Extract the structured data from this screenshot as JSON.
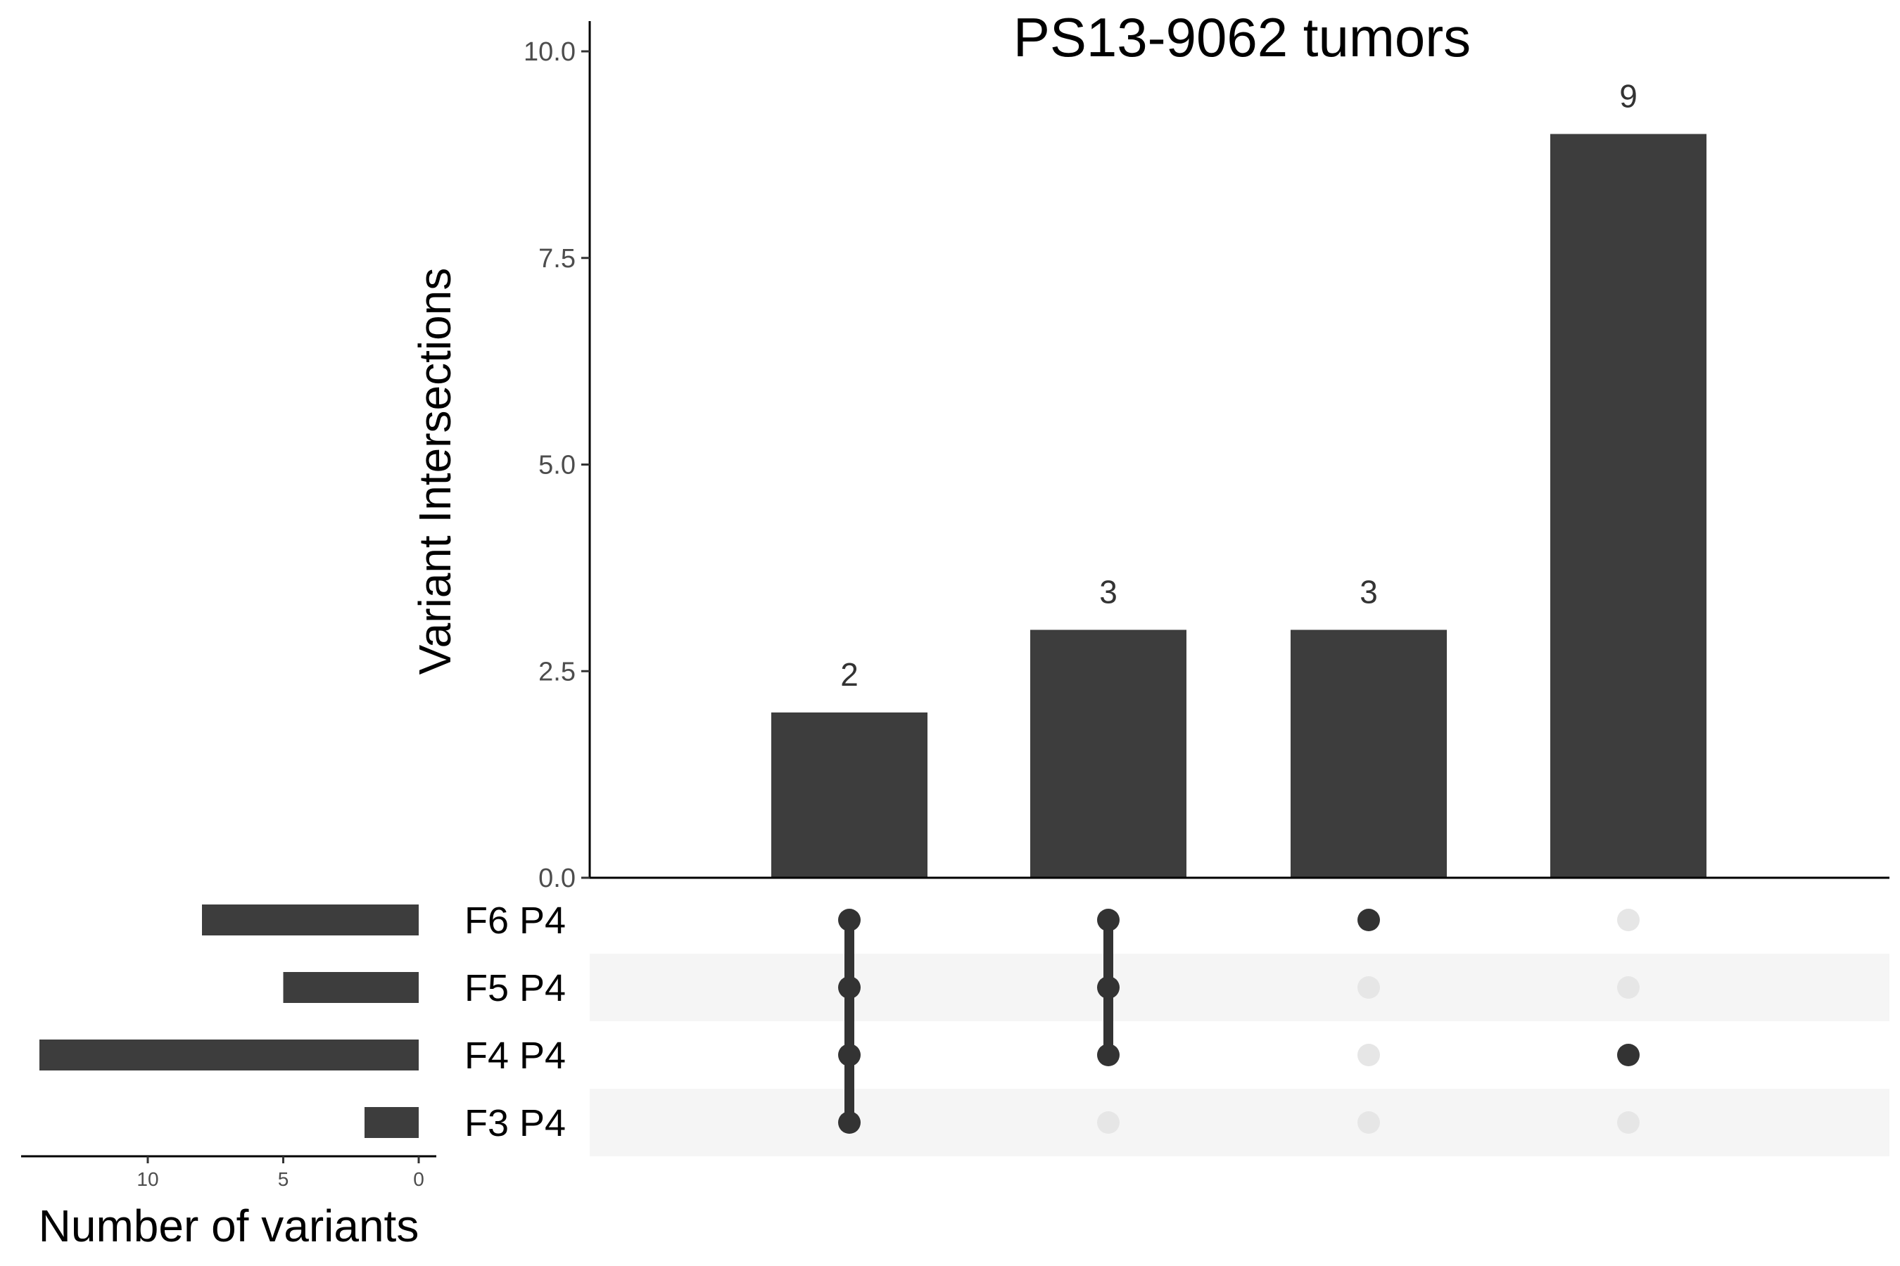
{
  "chart_data": {
    "type": "bar",
    "subtype": "upset",
    "title": "PS13-9062 tumors",
    "ylabel": "Variant Intersections",
    "ylim": [
      0,
      10
    ],
    "yticks": [
      "0.0",
      "2.5",
      "5.0",
      "7.5",
      "10.0"
    ],
    "ytick_values": [
      0,
      2.5,
      5.0,
      7.5,
      10.0
    ],
    "intersections": [
      {
        "value": 2,
        "label": "2",
        "sets": [
          "F6 P4",
          "F5 P4",
          "F4 P4",
          "F3 P4"
        ]
      },
      {
        "value": 3,
        "label": "3",
        "sets": [
          "F6 P4",
          "F5 P4",
          "F4 P4"
        ]
      },
      {
        "value": 3,
        "label": "3",
        "sets": [
          "F6 P4"
        ]
      },
      {
        "value": 9,
        "label": "9",
        "sets": [
          "F4 P4"
        ]
      }
    ],
    "sets": [
      {
        "name": "F6 P4",
        "size": 8
      },
      {
        "name": "F5 P4",
        "size": 5
      },
      {
        "name": "F4 P4",
        "size": 14
      },
      {
        "name": "F3 P4",
        "size": 2
      }
    ],
    "set_size_axis": {
      "xlabel": "Number of variants",
      "ticks": [
        "10",
        "5",
        "0"
      ],
      "tick_values": [
        10,
        5,
        0
      ],
      "xlim": [
        0,
        15
      ],
      "reversed": true
    },
    "colors": {
      "bar": "#3d3d3d",
      "dot_active": "#333333",
      "dot_inactive": "#e6e6e6",
      "stripe": "#f5f5f5"
    }
  }
}
